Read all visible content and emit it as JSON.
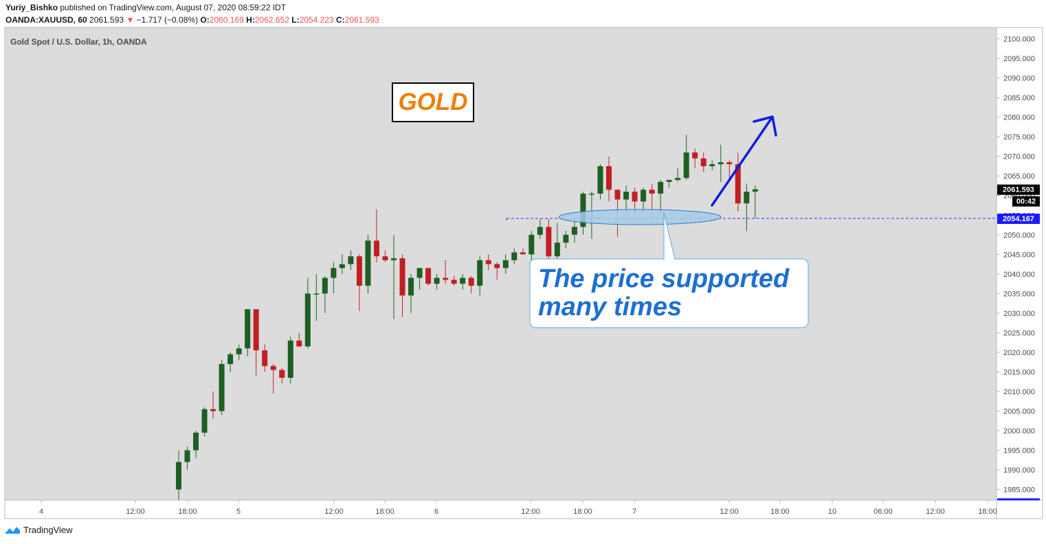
{
  "header": {
    "author": "Yuriy_Bishko",
    "published_text": "published on TradingView.com, August 07, 2020 08:59:22 IDT",
    "symbol": "OANDA:XAUUSD, 60",
    "last": "2061.593",
    "change": "−1.717 (−0.08%)",
    "o_label": "O:",
    "o_val": "2060.169",
    "h_label": "H:",
    "h_val": "2062.652",
    "l_label": "L:",
    "l_val": "2054.223",
    "c_label": "C:",
    "c_val": "2061.593"
  },
  "footer": {
    "brand": "TradingView"
  },
  "colors": {
    "up": "#1e5f23",
    "down": "#c11f24",
    "background": "#dcdcdc",
    "arrow": "#0a1fe0",
    "callout_text": "#1e6fd0",
    "gold": "#f07d0a"
  },
  "chart_data": {
    "type": "candlestick",
    "title": "Gold Spot / U.S. Dollar, 1h, OANDA",
    "y_ticks": [
      "2100.000",
      "2095.000",
      "2090.000",
      "2085.000",
      "2080.000",
      "2075.000",
      "2070.000",
      "2065.000",
      "2060.000",
      "2055.000",
      "2050.000",
      "2045.000",
      "2040.000",
      "2035.000",
      "2030.000",
      "2025.000",
      "2020.000",
      "2015.000",
      "2010.000",
      "2005.000",
      "2000.000",
      "1995.000",
      "1990.000",
      "1985.000"
    ],
    "y_range": [
      1982.3,
      2101.5
    ],
    "x_ticks": [
      "4",
      "12:00",
      "18:00",
      "5",
      "12:00",
      "18:00",
      "6",
      "12:00",
      "18:00",
      "7",
      "12:00",
      "18:00",
      "10",
      "06:00",
      "12:00",
      "18:00"
    ],
    "last_price": "2061.593",
    "countdown": "00:42",
    "support_level": "2054.167",
    "candles": [
      {
        "o": 1985,
        "h": 1995,
        "l": 1982,
        "c": 1992
      },
      {
        "o": 1992,
        "h": 1996,
        "l": 1990,
        "c": 1995
      },
      {
        "o": 1995,
        "h": 2000,
        "l": 1993,
        "c": 1999.5
      },
      {
        "o": 1999.5,
        "h": 2006,
        "l": 1998.5,
        "c": 2005.5
      },
      {
        "o": 2005.5,
        "h": 2010,
        "l": 2003,
        "c": 2005
      },
      {
        "o": 2005,
        "h": 2018,
        "l": 2004,
        "c": 2017
      },
      {
        "o": 2017,
        "h": 2020,
        "l": 2015,
        "c": 2019.5
      },
      {
        "o": 2019.5,
        "h": 2022,
        "l": 2018,
        "c": 2021
      },
      {
        "o": 2021,
        "h": 2031,
        "l": 2019,
        "c": 2031
      },
      {
        "o": 2031,
        "h": 2031,
        "l": 2014,
        "c": 2020.5
      },
      {
        "o": 2020.5,
        "h": 2022,
        "l": 2015,
        "c": 2016.5
      },
      {
        "o": 2016.5,
        "h": 2017,
        "l": 2009.5,
        "c": 2015.5
      },
      {
        "o": 2015.5,
        "h": 2016,
        "l": 2012,
        "c": 2013.5
      },
      {
        "o": 2013.5,
        "h": 2024,
        "l": 2012,
        "c": 2023
      },
      {
        "o": 2023,
        "h": 2025,
        "l": 2021.5,
        "c": 2021.5
      },
      {
        "o": 2021.5,
        "h": 2039,
        "l": 2021,
        "c": 2035
      },
      {
        "o": 2035,
        "h": 2040,
        "l": 2028,
        "c": 2035
      },
      {
        "o": 2035,
        "h": 2039.5,
        "l": 2030,
        "c": 2039
      },
      {
        "o": 2039,
        "h": 2043,
        "l": 2035,
        "c": 2041.5
      },
      {
        "o": 2041.5,
        "h": 2045,
        "l": 2040,
        "c": 2042.5
      },
      {
        "o": 2042.5,
        "h": 2046,
        "l": 2041,
        "c": 2044.5
      },
      {
        "o": 2044.5,
        "h": 2045,
        "l": 2030.5,
        "c": 2037
      },
      {
        "o": 2037,
        "h": 2050,
        "l": 2035,
        "c": 2048.5
      },
      {
        "o": 2048.5,
        "h": 2056.5,
        "l": 2043,
        "c": 2044.5
      },
      {
        "o": 2044.5,
        "h": 2046,
        "l": 2043,
        "c": 2043.5
      },
      {
        "o": 2043.5,
        "h": 2050,
        "l": 2028.5,
        "c": 2044
      },
      {
        "o": 2044,
        "h": 2045,
        "l": 2029,
        "c": 2034.5
      },
      {
        "o": 2034.5,
        "h": 2040,
        "l": 2030,
        "c": 2039
      },
      {
        "o": 2039,
        "h": 2041,
        "l": 2036,
        "c": 2041.5
      },
      {
        "o": 2041.5,
        "h": 2041,
        "l": 2037,
        "c": 2037.5
      },
      {
        "o": 2037.5,
        "h": 2040,
        "l": 2036,
        "c": 2039
      },
      {
        "o": 2039,
        "h": 2043.5,
        "l": 2037.5,
        "c": 2038.5
      },
      {
        "o": 2038.5,
        "h": 2039.5,
        "l": 2037,
        "c": 2037.5
      },
      {
        "o": 2037.5,
        "h": 2040,
        "l": 2036,
        "c": 2039
      },
      {
        "o": 2039,
        "h": 2039.5,
        "l": 2035,
        "c": 2037
      },
      {
        "o": 2037,
        "h": 2044.5,
        "l": 2034.5,
        "c": 2043.5
      },
      {
        "o": 2043.5,
        "h": 2045,
        "l": 2041,
        "c": 2042.5
      },
      {
        "o": 2042.5,
        "h": 2043,
        "l": 2038.5,
        "c": 2041.5
      },
      {
        "o": 2041.5,
        "h": 2045,
        "l": 2040,
        "c": 2043.5
      },
      {
        "o": 2043.5,
        "h": 2046.5,
        "l": 2042.5,
        "c": 2045.5
      },
      {
        "o": 2045.5,
        "h": 2046.5,
        "l": 2045,
        "c": 2045
      },
      {
        "o": 2045,
        "h": 2051,
        "l": 2043.5,
        "c": 2050
      },
      {
        "o": 2050,
        "h": 2054,
        "l": 2049,
        "c": 2052
      },
      {
        "o": 2052,
        "h": 2054,
        "l": 2043.5,
        "c": 2044.5
      },
      {
        "o": 2044.5,
        "h": 2053,
        "l": 2041,
        "c": 2048
      },
      {
        "o": 2048,
        "h": 2051,
        "l": 2046.5,
        "c": 2050
      },
      {
        "o": 2050,
        "h": 2054,
        "l": 2048,
        "c": 2052
      },
      {
        "o": 2052,
        "h": 2061,
        "l": 2050,
        "c": 2060.5
      },
      {
        "o": 2060.5,
        "h": 2061,
        "l": 2049,
        "c": 2060.5
      },
      {
        "o": 2060.5,
        "h": 2068,
        "l": 2059,
        "c": 2067.5
      },
      {
        "o": 2067.5,
        "h": 2070,
        "l": 2058.5,
        "c": 2061.5
      },
      {
        "o": 2061.5,
        "h": 2061,
        "l": 2049.5,
        "c": 2059
      },
      {
        "o": 2059,
        "h": 2062.5,
        "l": 2055.5,
        "c": 2061
      },
      {
        "o": 2061,
        "h": 2062,
        "l": 2055,
        "c": 2058.5
      },
      {
        "o": 2058.5,
        "h": 2062,
        "l": 2055.5,
        "c": 2061.5
      },
      {
        "o": 2061.5,
        "h": 2063,
        "l": 2054,
        "c": 2060.5
      },
      {
        "o": 2060.5,
        "h": 2064,
        "l": 2055.5,
        "c": 2063.5
      },
      {
        "o": 2063.5,
        "h": 2064,
        "l": 2062,
        "c": 2064
      },
      {
        "o": 2064,
        "h": 2067,
        "l": 2063.5,
        "c": 2064.5
      },
      {
        "o": 2064.5,
        "h": 2075.5,
        "l": 2064,
        "c": 2071
      },
      {
        "o": 2071,
        "h": 2072,
        "l": 2067,
        "c": 2069.5
      },
      {
        "o": 2069.5,
        "h": 2071,
        "l": 2066,
        "c": 2067.5
      },
      {
        "o": 2067.5,
        "h": 2069,
        "l": 2066.5,
        "c": 2068
      },
      {
        "o": 2068,
        "h": 2073,
        "l": 2063.5,
        "c": 2068.5
      },
      {
        "o": 2068.5,
        "h": 2069,
        "l": 2064,
        "c": 2068
      },
      {
        "o": 2068,
        "h": 2071,
        "l": 2056,
        "c": 2058
      },
      {
        "o": 2058,
        "h": 2063,
        "l": 2051,
        "c": 2061
      },
      {
        "o": 2061,
        "h": 2062.6,
        "l": 2054.2,
        "c": 2061.6
      }
    ],
    "annotations": {
      "gold_label": "GOLD",
      "callout_text_line1": "The price supported",
      "callout_text_line2": "many times"
    }
  }
}
